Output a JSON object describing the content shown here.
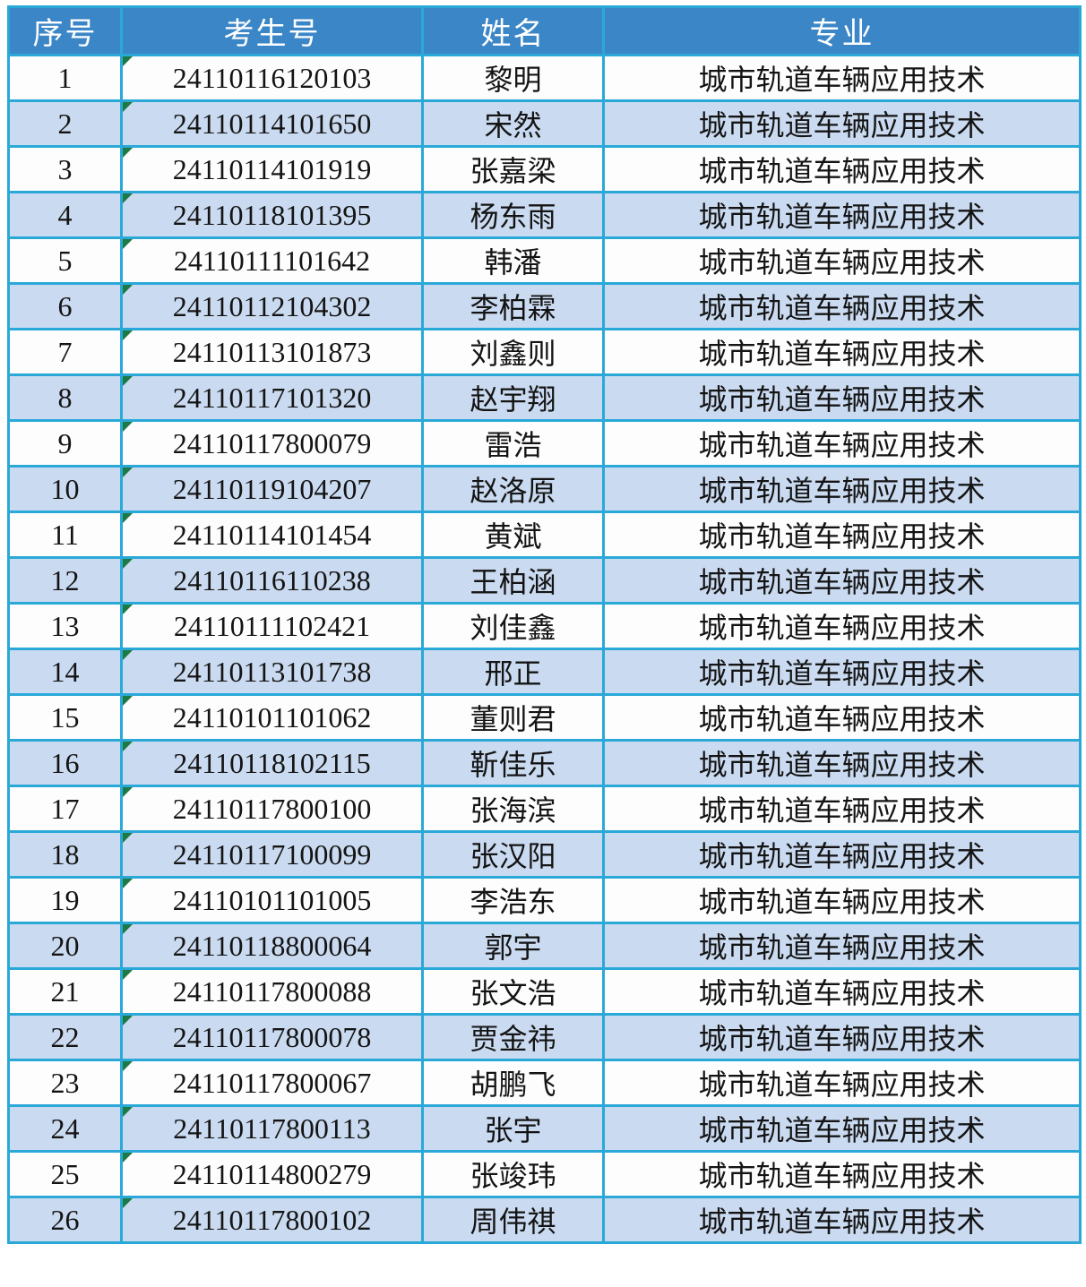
{
  "colors": {
    "header_bg": "#3b86c7",
    "header_text": "#ffffff",
    "grid_border": "#2aa9d8",
    "row_odd_bg": "#fdfdfd",
    "row_even_bg": "#cadaf0",
    "body_text": "#141414",
    "corner_flag_green": "#1e7a44"
  },
  "table": {
    "columns": [
      {
        "key": "seq",
        "label": "序号"
      },
      {
        "key": "id",
        "label": "考生号"
      },
      {
        "key": "name",
        "label": "姓名"
      },
      {
        "key": "major",
        "label": "专业"
      }
    ],
    "rows": [
      {
        "seq": "1",
        "id": "24110116120103",
        "name": "黎明",
        "major": "城市轨道车辆应用技术"
      },
      {
        "seq": "2",
        "id": "24110114101650",
        "name": "宋然",
        "major": "城市轨道车辆应用技术"
      },
      {
        "seq": "3",
        "id": "24110114101919",
        "name": "张嘉梁",
        "major": "城市轨道车辆应用技术"
      },
      {
        "seq": "4",
        "id": "24110118101395",
        "name": "杨东雨",
        "major": "城市轨道车辆应用技术"
      },
      {
        "seq": "5",
        "id": "24110111101642",
        "name": "韩潘",
        "major": "城市轨道车辆应用技术"
      },
      {
        "seq": "6",
        "id": "24110112104302",
        "name": "李柏霖",
        "major": "城市轨道车辆应用技术"
      },
      {
        "seq": "7",
        "id": "24110113101873",
        "name": "刘鑫则",
        "major": "城市轨道车辆应用技术"
      },
      {
        "seq": "8",
        "id": "24110117101320",
        "name": "赵宇翔",
        "major": "城市轨道车辆应用技术"
      },
      {
        "seq": "9",
        "id": "24110117800079",
        "name": "雷浩",
        "major": "城市轨道车辆应用技术"
      },
      {
        "seq": "10",
        "id": "24110119104207",
        "name": "赵洛原",
        "major": "城市轨道车辆应用技术"
      },
      {
        "seq": "11",
        "id": "24110114101454",
        "name": "黄斌",
        "major": "城市轨道车辆应用技术"
      },
      {
        "seq": "12",
        "id": "24110116110238",
        "name": "王柏涵",
        "major": "城市轨道车辆应用技术"
      },
      {
        "seq": "13",
        "id": "24110111102421",
        "name": "刘佳鑫",
        "major": "城市轨道车辆应用技术"
      },
      {
        "seq": "14",
        "id": "24110113101738",
        "name": "邢正",
        "major": "城市轨道车辆应用技术"
      },
      {
        "seq": "15",
        "id": "24110101101062",
        "name": "董则君",
        "major": "城市轨道车辆应用技术"
      },
      {
        "seq": "16",
        "id": "24110118102115",
        "name": "靳佳乐",
        "major": "城市轨道车辆应用技术"
      },
      {
        "seq": "17",
        "id": "24110117800100",
        "name": "张海滨",
        "major": "城市轨道车辆应用技术"
      },
      {
        "seq": "18",
        "id": "24110117100099",
        "name": "张汉阳",
        "major": "城市轨道车辆应用技术"
      },
      {
        "seq": "19",
        "id": "24110101101005",
        "name": "李浩东",
        "major": "城市轨道车辆应用技术"
      },
      {
        "seq": "20",
        "id": "24110118800064",
        "name": "郭宇",
        "major": "城市轨道车辆应用技术"
      },
      {
        "seq": "21",
        "id": "24110117800088",
        "name": "张文浩",
        "major": "城市轨道车辆应用技术"
      },
      {
        "seq": "22",
        "id": "24110117800078",
        "name": "贾金祎",
        "major": "城市轨道车辆应用技术"
      },
      {
        "seq": "23",
        "id": "24110117800067",
        "name": "胡鹏飞",
        "major": "城市轨道车辆应用技术"
      },
      {
        "seq": "24",
        "id": "24110117800113",
        "name": "张宇",
        "major": "城市轨道车辆应用技术"
      },
      {
        "seq": "25",
        "id": "24110114800279",
        "name": "张竣玮",
        "major": "城市轨道车辆应用技术"
      },
      {
        "seq": "26",
        "id": "24110117800102",
        "name": "周伟祺",
        "major": "城市轨道车辆应用技术"
      }
    ]
  }
}
